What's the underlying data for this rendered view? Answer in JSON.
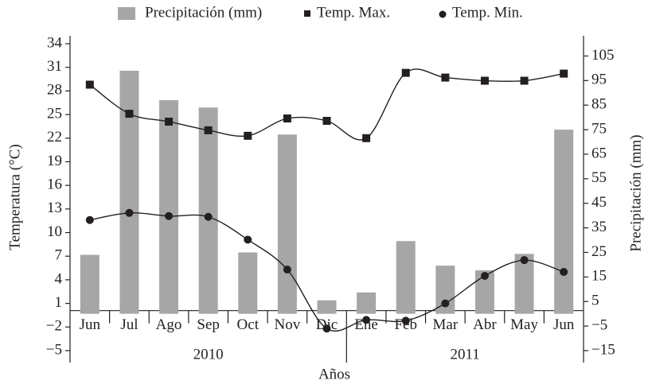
{
  "chart_data": {
    "type": "bar-line",
    "categories": [
      "Jun",
      "Jul",
      "Ago",
      "Sep",
      "Oct",
      "Nov",
      "Dic",
      "Ene",
      "Feb",
      "Mar",
      "Abr",
      "May",
      "Jun"
    ],
    "groups": [
      "2010",
      "2011"
    ],
    "x_label": "Años",
    "y_label": "Temperatura (°C)",
    "y2_label": "Precipitación (mm)",
    "ylim": [
      -5,
      34
    ],
    "yticks": [
      {
        "value": -5,
        "label": "−5"
      },
      {
        "value": -2,
        "label": "−2"
      },
      1,
      4,
      7,
      10,
      13,
      16,
      19,
      22,
      25,
      28,
      31,
      34
    ],
    "y2lim": [
      -15,
      110
    ],
    "y2ticks": [
      {
        "value": -15,
        "label": "−15"
      },
      {
        "value": -5,
        "label": "−5"
      },
      5,
      15,
      25,
      35,
      45,
      55,
      65,
      75,
      85,
      95,
      105
    ],
    "legend": "top",
    "series": [
      {
        "name": "Precipitación (mm)",
        "type": "bar",
        "axis": "y2",
        "color": "#a6a6a6",
        "values": [
          24,
          99,
          87,
          84,
          25,
          73,
          5.5,
          8.7,
          29.6,
          19.6,
          17.7,
          24.4,
          75
        ]
      },
      {
        "name": "Temp. Max.",
        "type": "line",
        "marker": "square",
        "color": "#231f20",
        "values": [
          28.8,
          25.1,
          24.1,
          23,
          22.3,
          24.5,
          24.2,
          22,
          30.3,
          29.7,
          29.3,
          29.3,
          30.2
        ]
      },
      {
        "name": "Temp. Min.",
        "type": "line",
        "marker": "circle",
        "color": "#231f20",
        "values": [
          11.6,
          12.5,
          12.1,
          12,
          9.1,
          5.3,
          -2.2,
          -1.1,
          -1.2,
          1,
          4.5,
          6.5,
          5
        ]
      }
    ]
  }
}
